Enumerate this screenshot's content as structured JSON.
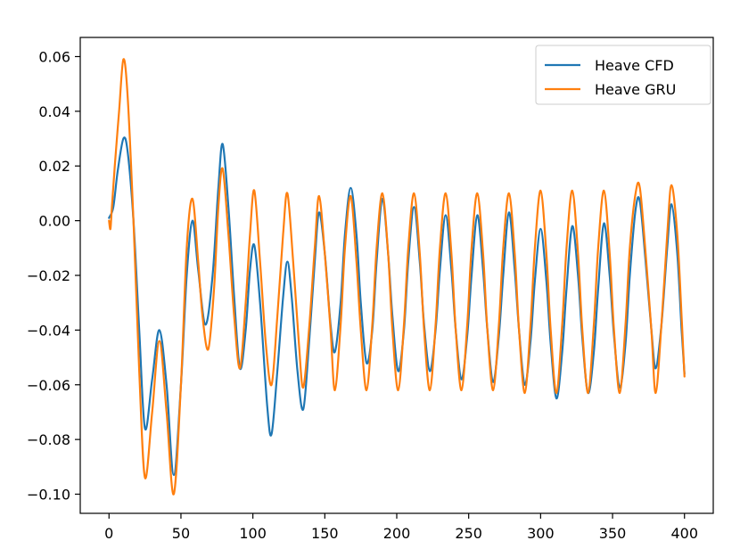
{
  "chart_data": {
    "type": "line",
    "title": "",
    "xlabel": "",
    "ylabel": "",
    "xlim": [
      -20,
      420
    ],
    "ylim": [
      -0.107,
      0.067
    ],
    "x_ticks": [
      0,
      50,
      100,
      150,
      200,
      250,
      300,
      350,
      400
    ],
    "x_tick_labels": [
      "0",
      "50",
      "100",
      "150",
      "200",
      "250",
      "300",
      "350",
      "400"
    ],
    "y_ticks": [
      0.06,
      0.04,
      0.02,
      0.0,
      -0.02,
      -0.04,
      -0.06,
      -0.08,
      -0.1
    ],
    "y_tick_labels": [
      "0.06",
      "0.04",
      "0.02",
      "0.00",
      "−0.02",
      "−0.04",
      "−0.06",
      "−0.08",
      "−0.10"
    ],
    "grid": false,
    "legend_position": "upper right",
    "series": [
      {
        "name": "Heave CFD",
        "color": "#1f77b4",
        "points": [
          [
            0,
            0.001
          ],
          [
            3,
            0.005
          ],
          [
            6,
            0.018
          ],
          [
            10,
            0.03
          ],
          [
            13,
            0.025
          ],
          [
            17,
            0.0
          ],
          [
            21,
            -0.04
          ],
          [
            25,
            -0.076
          ],
          [
            30,
            -0.058
          ],
          [
            35,
            -0.04
          ],
          [
            40,
            -0.06
          ],
          [
            45,
            -0.093
          ],
          [
            50,
            -0.06
          ],
          [
            54,
            -0.02
          ],
          [
            58,
            0.0
          ],
          [
            62,
            -0.018
          ],
          [
            67,
            -0.038
          ],
          [
            72,
            -0.02
          ],
          [
            76,
            0.012
          ],
          [
            79,
            0.028
          ],
          [
            83,
            0.005
          ],
          [
            87,
            -0.028
          ],
          [
            91,
            -0.054
          ],
          [
            95,
            -0.04
          ],
          [
            98,
            -0.018
          ],
          [
            101,
            -0.009
          ],
          [
            105,
            -0.03
          ],
          [
            110,
            -0.068
          ],
          [
            113,
            -0.078
          ],
          [
            117,
            -0.055
          ],
          [
            121,
            -0.028
          ],
          [
            124,
            -0.015
          ],
          [
            127,
            -0.028
          ],
          [
            131,
            -0.055
          ],
          [
            135,
            -0.069
          ],
          [
            139,
            -0.045
          ],
          [
            143,
            -0.015
          ],
          [
            146,
            0.003
          ],
          [
            150,
            -0.012
          ],
          [
            154,
            -0.038
          ],
          [
            157,
            -0.048
          ],
          [
            161,
            -0.03
          ],
          [
            164,
            -0.005
          ],
          [
            168,
            0.012
          ],
          [
            172,
            -0.005
          ],
          [
            175,
            -0.03
          ],
          [
            179,
            -0.052
          ],
          [
            183,
            -0.04
          ],
          [
            186,
            -0.015
          ],
          [
            190,
            0.008
          ],
          [
            194,
            -0.012
          ],
          [
            197,
            -0.035
          ],
          [
            201,
            -0.055
          ],
          [
            205,
            -0.04
          ],
          [
            208,
            -0.015
          ],
          [
            212,
            0.005
          ],
          [
            216,
            -0.015
          ],
          [
            219,
            -0.038
          ],
          [
            223,
            -0.055
          ],
          [
            227,
            -0.04
          ],
          [
            230,
            -0.018
          ],
          [
            234,
            0.002
          ],
          [
            238,
            -0.018
          ],
          [
            241,
            -0.04
          ],
          [
            245,
            -0.058
          ],
          [
            249,
            -0.042
          ],
          [
            252,
            -0.02
          ],
          [
            256,
            0.002
          ],
          [
            260,
            -0.018
          ],
          [
            263,
            -0.04
          ],
          [
            267,
            -0.059
          ],
          [
            271,
            -0.042
          ],
          [
            274,
            -0.02
          ],
          [
            278,
            0.003
          ],
          [
            282,
            -0.018
          ],
          [
            285,
            -0.04
          ],
          [
            289,
            -0.06
          ],
          [
            293,
            -0.044
          ],
          [
            296,
            -0.022
          ],
          [
            300,
            -0.003
          ],
          [
            304,
            -0.022
          ],
          [
            307,
            -0.045
          ],
          [
            311,
            -0.065
          ],
          [
            315,
            -0.048
          ],
          [
            318,
            -0.025
          ],
          [
            322,
            -0.002
          ],
          [
            326,
            -0.02
          ],
          [
            329,
            -0.043
          ],
          [
            333,
            -0.063
          ],
          [
            337,
            -0.048
          ],
          [
            340,
            -0.025
          ],
          [
            344,
            -0.001
          ],
          [
            348,
            -0.02
          ],
          [
            351,
            -0.042
          ],
          [
            355,
            -0.061
          ],
          [
            359,
            -0.045
          ],
          [
            362,
            -0.02
          ],
          [
            366,
            0.004
          ],
          [
            369,
            0.007
          ],
          [
            373,
            -0.015
          ],
          [
            377,
            -0.04
          ],
          [
            380,
            -0.054
          ],
          [
            384,
            -0.038
          ],
          [
            388,
            -0.01
          ],
          [
            391,
            0.006
          ],
          [
            395,
            -0.012
          ],
          [
            398,
            -0.04
          ],
          [
            400,
            -0.056
          ]
        ]
      },
      {
        "name": "Heave GRU",
        "color": "#ff7f0e",
        "points": [
          [
            0,
            0.0
          ],
          [
            1,
            -0.003
          ],
          [
            2,
            0.005
          ],
          [
            4,
            0.02
          ],
          [
            7,
            0.04
          ],
          [
            10,
            0.059
          ],
          [
            13,
            0.045
          ],
          [
            17,
            0.0
          ],
          [
            21,
            -0.055
          ],
          [
            25,
            -0.094
          ],
          [
            30,
            -0.07
          ],
          [
            35,
            -0.044
          ],
          [
            40,
            -0.07
          ],
          [
            45,
            -0.1
          ],
          [
            50,
            -0.06
          ],
          [
            54,
            -0.01
          ],
          [
            58,
            0.008
          ],
          [
            62,
            -0.015
          ],
          [
            65,
            -0.035
          ],
          [
            69,
            -0.047
          ],
          [
            73,
            -0.025
          ],
          [
            76,
            0.005
          ],
          [
            79,
            0.019
          ],
          [
            83,
            -0.005
          ],
          [
            87,
            -0.035
          ],
          [
            91,
            -0.054
          ],
          [
            95,
            -0.03
          ],
          [
            98,
            -0.005
          ],
          [
            101,
            0.011
          ],
          [
            105,
            -0.015
          ],
          [
            109,
            -0.045
          ],
          [
            113,
            -0.06
          ],
          [
            117,
            -0.035
          ],
          [
            121,
            -0.005
          ],
          [
            124,
            0.01
          ],
          [
            128,
            -0.015
          ],
          [
            132,
            -0.045
          ],
          [
            135,
            -0.061
          ],
          [
            139,
            -0.04
          ],
          [
            143,
            -0.01
          ],
          [
            146,
            0.009
          ],
          [
            150,
            -0.012
          ],
          [
            154,
            -0.04
          ],
          [
            157,
            -0.062
          ],
          [
            161,
            -0.038
          ],
          [
            164,
            -0.01
          ],
          [
            168,
            0.009
          ],
          [
            172,
            -0.015
          ],
          [
            175,
            -0.04
          ],
          [
            179,
            -0.062
          ],
          [
            183,
            -0.038
          ],
          [
            186,
            -0.01
          ],
          [
            190,
            0.01
          ],
          [
            194,
            -0.012
          ],
          [
            197,
            -0.04
          ],
          [
            201,
            -0.062
          ],
          [
            205,
            -0.038
          ],
          [
            208,
            -0.01
          ],
          [
            212,
            0.01
          ],
          [
            216,
            -0.012
          ],
          [
            219,
            -0.04
          ],
          [
            223,
            -0.062
          ],
          [
            227,
            -0.038
          ],
          [
            230,
            -0.01
          ],
          [
            234,
            0.01
          ],
          [
            238,
            -0.012
          ],
          [
            241,
            -0.04
          ],
          [
            245,
            -0.062
          ],
          [
            249,
            -0.038
          ],
          [
            252,
            -0.01
          ],
          [
            256,
            0.01
          ],
          [
            260,
            -0.012
          ],
          [
            263,
            -0.04
          ],
          [
            267,
            -0.062
          ],
          [
            271,
            -0.038
          ],
          [
            274,
            -0.01
          ],
          [
            278,
            0.01
          ],
          [
            282,
            -0.012
          ],
          [
            285,
            -0.04
          ],
          [
            289,
            -0.063
          ],
          [
            293,
            -0.038
          ],
          [
            296,
            -0.01
          ],
          [
            300,
            0.011
          ],
          [
            304,
            -0.012
          ],
          [
            307,
            -0.04
          ],
          [
            311,
            -0.063
          ],
          [
            315,
            -0.038
          ],
          [
            318,
            -0.01
          ],
          [
            322,
            0.011
          ],
          [
            326,
            -0.012
          ],
          [
            329,
            -0.04
          ],
          [
            333,
            -0.063
          ],
          [
            337,
            -0.038
          ],
          [
            340,
            -0.01
          ],
          [
            344,
            0.011
          ],
          [
            348,
            -0.012
          ],
          [
            351,
            -0.04
          ],
          [
            355,
            -0.063
          ],
          [
            359,
            -0.038
          ],
          [
            362,
            -0.01
          ],
          [
            366,
            0.01
          ],
          [
            369,
            0.012
          ],
          [
            373,
            -0.012
          ],
          [
            377,
            -0.04
          ],
          [
            380,
            -0.063
          ],
          [
            384,
            -0.038
          ],
          [
            388,
            -0.005
          ],
          [
            391,
            0.013
          ],
          [
            395,
            -0.005
          ],
          [
            398,
            -0.035
          ],
          [
            400,
            -0.057
          ]
        ]
      }
    ]
  }
}
